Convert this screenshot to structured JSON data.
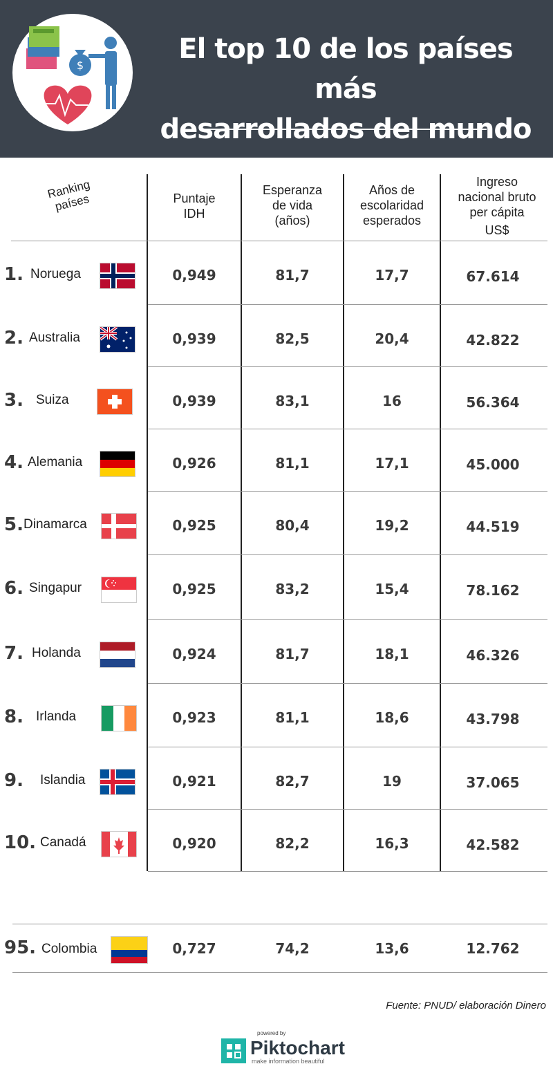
{
  "header": {
    "title_line1": "El top 10 de los países más",
    "title_line2": "desarrollados del mundo"
  },
  "columns": {
    "ranking_line1": "Ranking",
    "ranking_line2": "países",
    "idh_line1": "Puntaje",
    "idh_line2": "IDH",
    "vida_line1": "Esperanza",
    "vida_line2": "de vida",
    "vida_line3": "(años)",
    "escolaridad_line1": "Años de",
    "escolaridad_line2": "escolaridad",
    "escolaridad_line3": "esperados",
    "ingreso_line1": "Ingreso",
    "ingreso_line2": "nacional bruto",
    "ingreso_line3": "per cápita",
    "ingreso_line4": "US$"
  },
  "rows": [
    {
      "rank": "1.",
      "country": "Noruega",
      "idh": "0,949",
      "vida": "81,7",
      "escolaridad": "17,7",
      "ingreso": "67.614",
      "flag": "norway-flag"
    },
    {
      "rank": "2.",
      "country": "Australia",
      "idh": "0,939",
      "vida": "82,5",
      "escolaridad": "20,4",
      "ingreso": "42.822",
      "flag": "australia-flag"
    },
    {
      "rank": "3.",
      "country": "Suiza",
      "idh": "0,939",
      "vida": "83,1",
      "escolaridad": "16",
      "ingreso": "56.364",
      "flag": "switzerland-flag"
    },
    {
      "rank": "4.",
      "country": "Alemania",
      "idh": "0,926",
      "vida": "81,1",
      "escolaridad": "17,1",
      "ingreso": "45.000",
      "flag": "germany-flag"
    },
    {
      "rank": "5.",
      "country": "Dinamarca",
      "idh": "0,925",
      "vida": "80,4",
      "escolaridad": "19,2",
      "ingreso": "44.519",
      "flag": "denmark-flag"
    },
    {
      "rank": "6.",
      "country": "Singapur",
      "idh": "0,925",
      "vida": "83,2",
      "escolaridad": "15,4",
      "ingreso": "78.162",
      "flag": "singapore-flag"
    },
    {
      "rank": "7.",
      "country": "Holanda",
      "idh": "0,924",
      "vida": "81,7",
      "escolaridad": "18,1",
      "ingreso": "46.326",
      "flag": "netherlands-flag"
    },
    {
      "rank": "8.",
      "country": "Irlanda",
      "idh": "0,923",
      "vida": "81,1",
      "escolaridad": "18,6",
      "ingreso": "43.798",
      "flag": "ireland-flag"
    },
    {
      "rank": "9.",
      "country": "Islandia",
      "idh": "0,921",
      "vida": "82,7",
      "escolaridad": "19",
      "ingreso": "37.065",
      "flag": "iceland-flag"
    },
    {
      "rank": "10.",
      "country": "Canadá",
      "idh": "0,920",
      "vida": "82,2",
      "escolaridad": "16,3",
      "ingreso": "42.582",
      "flag": "canada-flag"
    }
  ],
  "colombia": {
    "rank": "95.",
    "country": "Colombia",
    "idh": "0,727",
    "vida": "74,2",
    "escolaridad": "13,6",
    "ingreso": "12.762",
    "flag": "colombia-flag"
  },
  "footer": {
    "source": "Fuente: PNUD/ elaboración Dinero",
    "powered_by": "powered by",
    "brand": "Piktochart",
    "tagline": "make information beautiful"
  },
  "colors": {
    "header_bg": "#3b434d",
    "value_text": "#3a3a3a"
  }
}
